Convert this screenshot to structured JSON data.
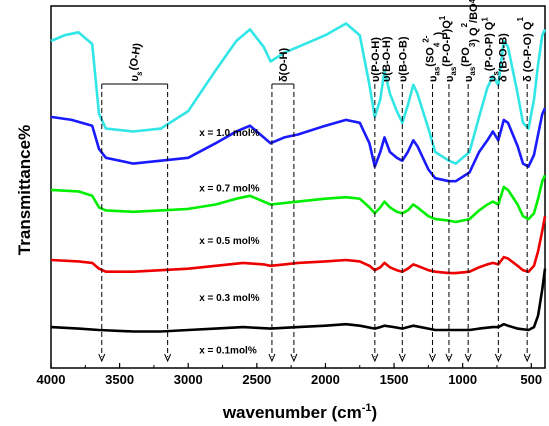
{
  "chart_data": {
    "type": "line",
    "xlabel_base": "wavenumber (cm",
    "xlabel_sup": "-1",
    "xlabel_end": ")",
    "ylabel": "Transmittance%",
    "xlim": [
      4000,
      400
    ],
    "x_ticks": [
      4000,
      3500,
      3000,
      2500,
      2000,
      1500,
      1000,
      500
    ],
    "x_reversed": true,
    "grid": false,
    "series": [
      {
        "name": "x = 1.0 mol%",
        "color": "#33e6e6",
        "points": [
          [
            4000,
            0.6
          ],
          [
            3900,
            0.62
          ],
          [
            3800,
            0.63
          ],
          [
            3700,
            0.59
          ],
          [
            3650,
            0.35
          ],
          [
            3600,
            0.3
          ],
          [
            3400,
            0.29
          ],
          [
            3200,
            0.3
          ],
          [
            3000,
            0.36
          ],
          [
            2800,
            0.5
          ],
          [
            2650,
            0.6
          ],
          [
            2550,
            0.64
          ],
          [
            2450,
            0.58
          ],
          [
            2400,
            0.53
          ],
          [
            2300,
            0.56
          ],
          [
            2200,
            0.58
          ],
          [
            2000,
            0.62
          ],
          [
            1850,
            0.66
          ],
          [
            1750,
            0.62
          ],
          [
            1680,
            0.45
          ],
          [
            1640,
            0.34
          ],
          [
            1600,
            0.4
          ],
          [
            1570,
            0.5
          ],
          [
            1530,
            0.42
          ],
          [
            1480,
            0.36
          ],
          [
            1440,
            0.32
          ],
          [
            1400,
            0.38
          ],
          [
            1360,
            0.45
          ],
          [
            1330,
            0.42
          ],
          [
            1250,
            0.3
          ],
          [
            1200,
            0.22
          ],
          [
            1100,
            0.19
          ],
          [
            1050,
            0.18
          ],
          [
            950,
            0.22
          ],
          [
            880,
            0.34
          ],
          [
            820,
            0.44
          ],
          [
            780,
            0.48
          ],
          [
            740,
            0.45
          ],
          [
            700,
            0.6
          ],
          [
            670,
            0.58
          ],
          [
            600,
            0.42
          ],
          [
            560,
            0.32
          ],
          [
            520,
            0.3
          ],
          [
            480,
            0.4
          ],
          [
            450,
            0.52
          ],
          [
            420,
            0.62
          ],
          [
            400,
            0.64
          ]
        ]
      },
      {
        "name": "x = 0.7 mol%",
        "color": "#1a1aff",
        "points": [
          [
            4000,
            0.34
          ],
          [
            3850,
            0.33
          ],
          [
            3700,
            0.31
          ],
          [
            3650,
            0.23
          ],
          [
            3600,
            0.2
          ],
          [
            3400,
            0.18
          ],
          [
            3200,
            0.19
          ],
          [
            3000,
            0.2
          ],
          [
            2800,
            0.25
          ],
          [
            2650,
            0.29
          ],
          [
            2550,
            0.31
          ],
          [
            2450,
            0.27
          ],
          [
            2400,
            0.25
          ],
          [
            2300,
            0.27
          ],
          [
            2200,
            0.28
          ],
          [
            2000,
            0.31
          ],
          [
            1850,
            0.33
          ],
          [
            1750,
            0.32
          ],
          [
            1680,
            0.25
          ],
          [
            1640,
            0.17
          ],
          [
            1600,
            0.22
          ],
          [
            1570,
            0.27
          ],
          [
            1530,
            0.22
          ],
          [
            1480,
            0.2
          ],
          [
            1440,
            0.19
          ],
          [
            1400,
            0.22
          ],
          [
            1360,
            0.26
          ],
          [
            1330,
            0.24
          ],
          [
            1250,
            0.16
          ],
          [
            1200,
            0.13
          ],
          [
            1100,
            0.12
          ],
          [
            1050,
            0.12
          ],
          [
            950,
            0.15
          ],
          [
            880,
            0.22
          ],
          [
            820,
            0.26
          ],
          [
            780,
            0.29
          ],
          [
            740,
            0.26
          ],
          [
            700,
            0.33
          ],
          [
            670,
            0.32
          ],
          [
            600,
            0.24
          ],
          [
            560,
            0.18
          ],
          [
            520,
            0.17
          ],
          [
            480,
            0.21
          ],
          [
            450,
            0.28
          ],
          [
            420,
            0.35
          ],
          [
            400,
            0.37
          ]
        ]
      },
      {
        "name": "x = 0.5 mol%",
        "color": "#00ee00",
        "points": [
          [
            4000,
            0.09
          ],
          [
            3800,
            0.085
          ],
          [
            3700,
            0.07
          ],
          [
            3650,
            0.03
          ],
          [
            3600,
            0.02
          ],
          [
            3400,
            0.015
          ],
          [
            3200,
            0.02
          ],
          [
            3000,
            0.025
          ],
          [
            2800,
            0.04
          ],
          [
            2650,
            0.06
          ],
          [
            2550,
            0.07
          ],
          [
            2450,
            0.05
          ],
          [
            2400,
            0.04
          ],
          [
            2300,
            0.045
          ],
          [
            2200,
            0.05
          ],
          [
            2000,
            0.06
          ],
          [
            1850,
            0.065
          ],
          [
            1750,
            0.06
          ],
          [
            1680,
            0.03
          ],
          [
            1640,
            0.01
          ],
          [
            1600,
            0.03
          ],
          [
            1570,
            0.05
          ],
          [
            1530,
            0.03
          ],
          [
            1480,
            0.015
          ],
          [
            1440,
            0.01
          ],
          [
            1400,
            0.02
          ],
          [
            1360,
            0.04
          ],
          [
            1330,
            0.03
          ],
          [
            1250,
            0.0
          ],
          [
            1200,
            -0.01
          ],
          [
            1100,
            -0.015
          ],
          [
            1050,
            -0.02
          ],
          [
            950,
            -0.01
          ],
          [
            880,
            0.02
          ],
          [
            820,
            0.04
          ],
          [
            780,
            0.05
          ],
          [
            740,
            0.04
          ],
          [
            700,
            0.1
          ],
          [
            670,
            0.09
          ],
          [
            600,
            0.04
          ],
          [
            560,
            0.0
          ],
          [
            520,
            -0.01
          ],
          [
            480,
            0.01
          ],
          [
            450,
            0.06
          ],
          [
            420,
            0.12
          ],
          [
            400,
            0.14
          ]
        ]
      },
      {
        "name": "x = 0.3 mol%",
        "color": "#ee0000",
        "points": [
          [
            4000,
            -0.15
          ],
          [
            3800,
            -0.155
          ],
          [
            3700,
            -0.16
          ],
          [
            3650,
            -0.18
          ],
          [
            3600,
            -0.19
          ],
          [
            3400,
            -0.19
          ],
          [
            3200,
            -0.185
          ],
          [
            3000,
            -0.18
          ],
          [
            2800,
            -0.17
          ],
          [
            2600,
            -0.16
          ],
          [
            2450,
            -0.165
          ],
          [
            2400,
            -0.17
          ],
          [
            2300,
            -0.165
          ],
          [
            2200,
            -0.16
          ],
          [
            2000,
            -0.155
          ],
          [
            1850,
            -0.15
          ],
          [
            1750,
            -0.155
          ],
          [
            1680,
            -0.17
          ],
          [
            1640,
            -0.185
          ],
          [
            1600,
            -0.175
          ],
          [
            1570,
            -0.16
          ],
          [
            1530,
            -0.175
          ],
          [
            1480,
            -0.185
          ],
          [
            1440,
            -0.19
          ],
          [
            1400,
            -0.18
          ],
          [
            1360,
            -0.165
          ],
          [
            1330,
            -0.17
          ],
          [
            1250,
            -0.185
          ],
          [
            1200,
            -0.19
          ],
          [
            1100,
            -0.195
          ],
          [
            1050,
            -0.195
          ],
          [
            950,
            -0.19
          ],
          [
            880,
            -0.175
          ],
          [
            820,
            -0.165
          ],
          [
            780,
            -0.16
          ],
          [
            740,
            -0.165
          ],
          [
            700,
            -0.14
          ],
          [
            670,
            -0.145
          ],
          [
            600,
            -0.17
          ],
          [
            560,
            -0.185
          ],
          [
            520,
            -0.19
          ],
          [
            480,
            -0.17
          ],
          [
            450,
            -0.12
          ],
          [
            420,
            -0.05
          ],
          [
            400,
            0.0
          ]
        ]
      },
      {
        "name": "x = 0.1mol%",
        "color": "#000000",
        "points": [
          [
            4000,
            -0.38
          ],
          [
            3800,
            -0.385
          ],
          [
            3650,
            -0.39
          ],
          [
            3400,
            -0.395
          ],
          [
            3200,
            -0.395
          ],
          [
            3000,
            -0.39
          ],
          [
            2800,
            -0.385
          ],
          [
            2600,
            -0.38
          ],
          [
            2400,
            -0.385
          ],
          [
            2200,
            -0.38
          ],
          [
            2000,
            -0.375
          ],
          [
            1850,
            -0.37
          ],
          [
            1750,
            -0.375
          ],
          [
            1640,
            -0.385
          ],
          [
            1600,
            -0.38
          ],
          [
            1570,
            -0.375
          ],
          [
            1500,
            -0.38
          ],
          [
            1440,
            -0.385
          ],
          [
            1400,
            -0.38
          ],
          [
            1360,
            -0.375
          ],
          [
            1250,
            -0.385
          ],
          [
            1200,
            -0.39
          ],
          [
            1100,
            -0.39
          ],
          [
            950,
            -0.39
          ],
          [
            880,
            -0.385
          ],
          [
            780,
            -0.38
          ],
          [
            740,
            -0.38
          ],
          [
            700,
            -0.37
          ],
          [
            670,
            -0.375
          ],
          [
            600,
            -0.385
          ],
          [
            520,
            -0.39
          ],
          [
            480,
            -0.38
          ],
          [
            450,
            -0.34
          ],
          [
            420,
            -0.25
          ],
          [
            400,
            -0.18
          ]
        ]
      }
    ],
    "curve_labels": [
      {
        "text": "x = 1.0 mol%",
        "x": 2920,
        "y": 0.275
      },
      {
        "text": "x = 0.7 mol%",
        "x": 2920,
        "y": 0.085
      },
      {
        "text": "x = 0.5 mol%",
        "x": 2920,
        "y": -0.095
      },
      {
        "text": "x = 0.3 mol%",
        "x": 2920,
        "y": -0.29
      },
      {
        "text": "x = 0.1mol%",
        "x": 2920,
        "y": -0.47
      }
    ],
    "annotations": [
      {
        "id": "vs-oh",
        "base": "υ",
        "sub": "s",
        "rest": "(O-H)",
        "x": 3400,
        "bracket": [
          3630,
          3150
        ],
        "lines": [
          3630,
          3150
        ],
        "rotate": -80
      },
      {
        "id": "delta-oh",
        "base": "δ(O-H)",
        "x": 2310,
        "bracket": [
          2390,
          2230
        ],
        "lines": [
          2390,
          2230
        ],
        "rotate": -90
      },
      {
        "id": "v-poh",
        "base": "υ(P-O-H)",
        "x": 1640,
        "lines": [
          1640
        ],
        "rotate": -90
      },
      {
        "id": "v-boh",
        "base": "υ(B-O-H)",
        "x": 1560,
        "rotate": -90
      },
      {
        "id": "v-bob",
        "base": "υ(B-O-B)",
        "x": 1440,
        "lines": [
          1440
        ],
        "rotate": -90
      },
      {
        "id": "vas-so4",
        "base": "υ",
        "sub": "as",
        "rest": "(SO",
        "sub2": "4",
        "sup2": "2-",
        "end": ")",
        "x": 1220,
        "lines": [
          1220
        ],
        "rotate": -90
      },
      {
        "id": "vas-pop-q1",
        "base": "υ",
        "sub": "as",
        "rest": "(P-O-P)Q",
        "sup2": "1",
        "x": 1100,
        "lines": [
          1100
        ],
        "rotate": -90
      },
      {
        "id": "vas-po3-q2-bo4",
        "base": "υ",
        "sub": "as",
        "rest": "(PO",
        "sub2": "3",
        "end": ") Q",
        "sup3": "2",
        "end2": "/BO",
        "sub3": "4",
        "x": 960,
        "lines": [
          960
        ],
        "rotate": -90
      },
      {
        "id": "vs-pop-q1",
        "base": "υ",
        "sub": "s",
        "rest": "(P-O-P) Q",
        "sup2": "1",
        "x": 790,
        "rotate": -90
      },
      {
        "id": "delta-bob",
        "base": "δ (B-O-B)",
        "x": 710,
        "lines": [
          740
        ],
        "rotate": -90
      },
      {
        "id": "delta-opo-q1",
        "base": "δ (O-P-O) Q",
        "sup2": "1",
        "x": 530,
        "lines": [
          530
        ],
        "rotate": -90
      }
    ]
  }
}
